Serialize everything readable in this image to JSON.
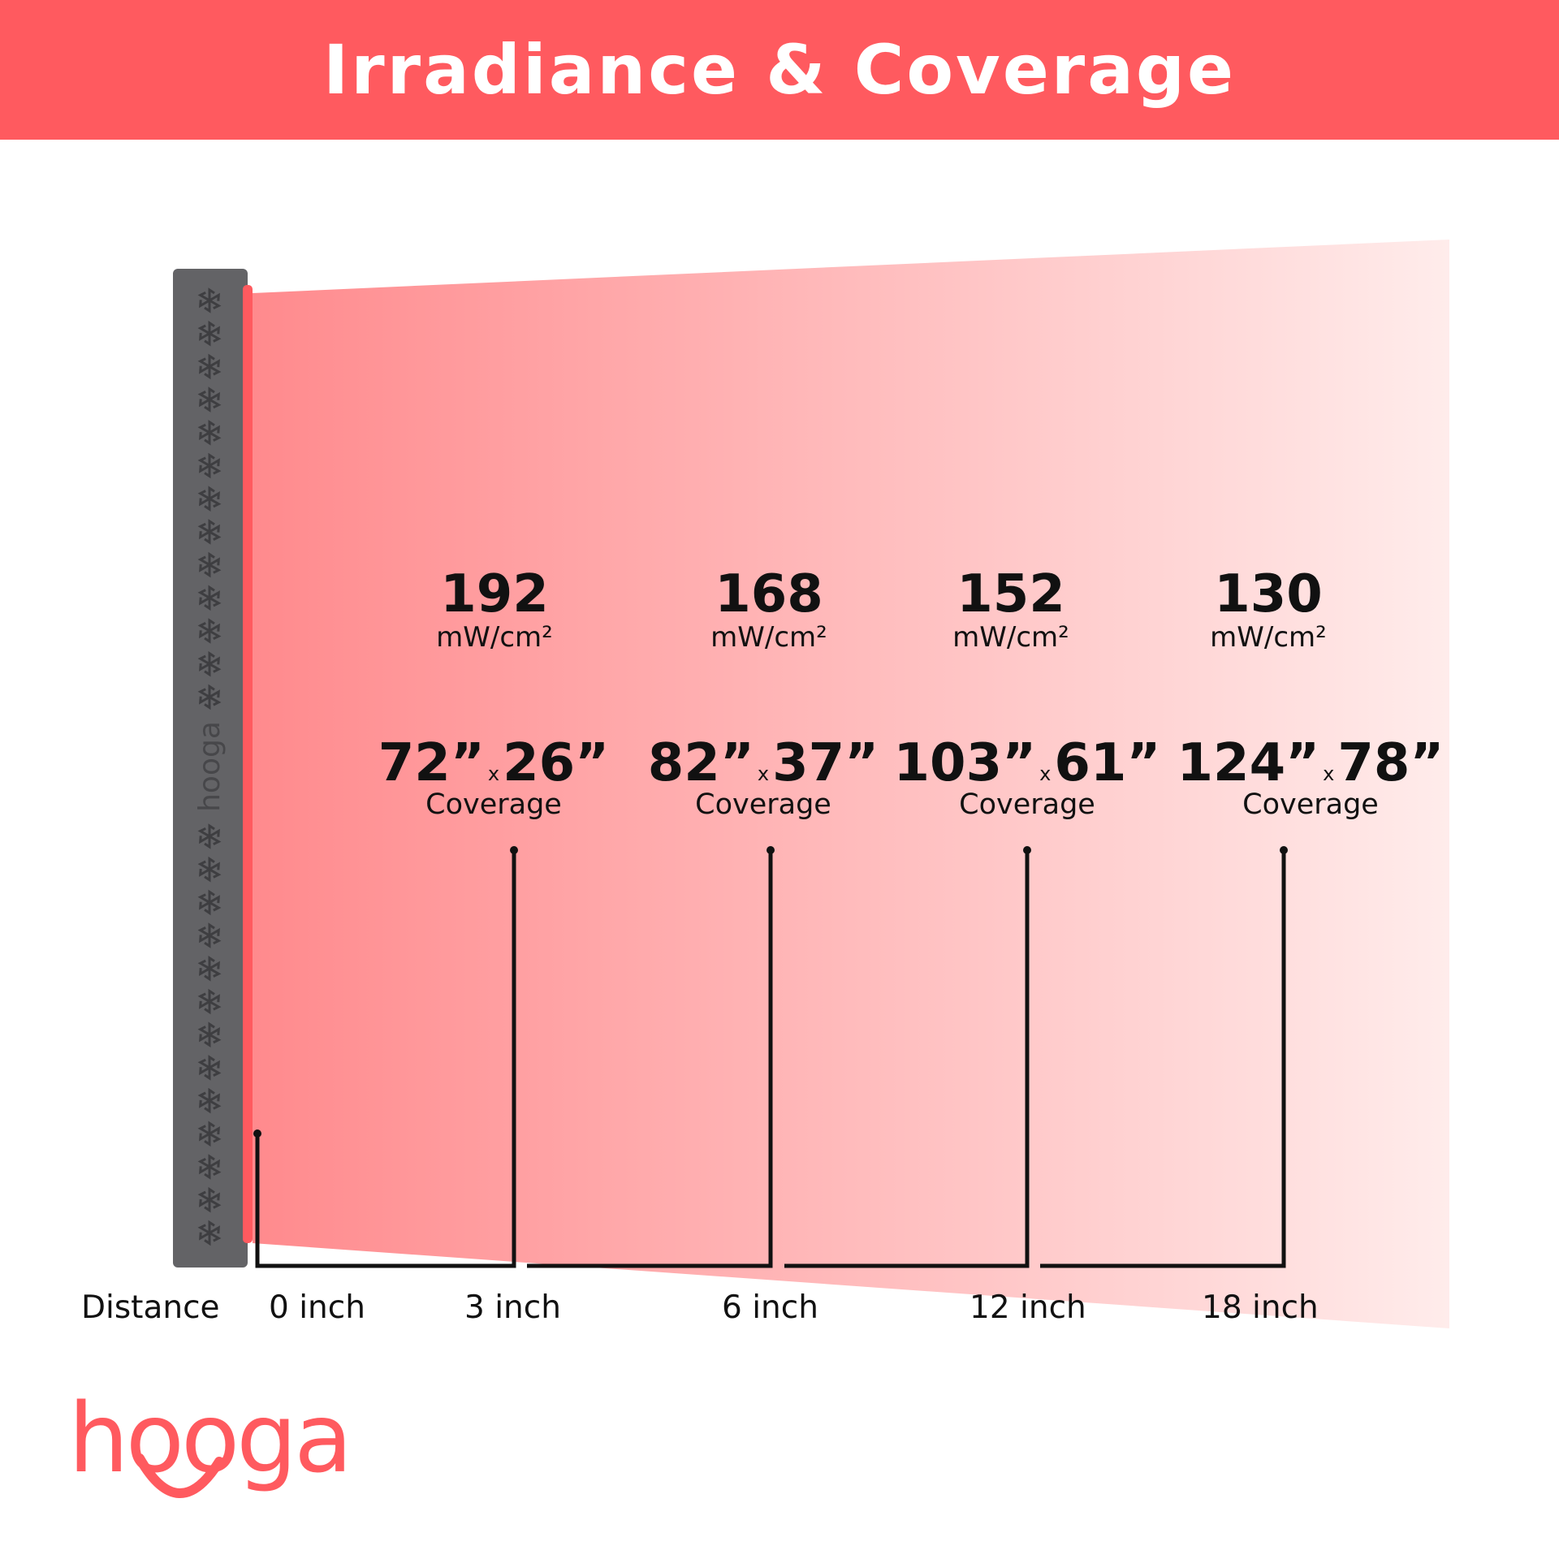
{
  "header": {
    "title": "Irradiance & Coverage"
  },
  "device": {
    "brand": "hooga",
    "color": "#636366",
    "light_color": "#ff5a5f"
  },
  "points": [
    {
      "irradiance": "192",
      "unit": "mW/cm²",
      "width": "72”",
      "height": "26”",
      "times": "x",
      "coverage_label": "Coverage"
    },
    {
      "irradiance": "168",
      "unit": "mW/cm²",
      "width": "82”",
      "height": "37”",
      "times": "x",
      "coverage_label": "Coverage"
    },
    {
      "irradiance": "152",
      "unit": "mW/cm²",
      "width": "103”",
      "height": "61”",
      "times": "x",
      "coverage_label": "Coverage"
    },
    {
      "irradiance": "130",
      "unit": "mW/cm²",
      "width": "124”",
      "height": "78”",
      "times": "x",
      "coverage_label": "Coverage"
    }
  ],
  "distance": {
    "label": "Distance",
    "ticks": [
      "0 inch",
      "3 inch",
      "6 inch",
      "12 inch",
      "18 inch"
    ]
  },
  "logo": {
    "text": "hooga",
    "color": "#ff5a5f",
    "accent": "#f8a08a"
  },
  "colors": {
    "header": "#ff5a5f",
    "beam_start": "#ff8a8d",
    "beam_end": "#ffeceb"
  }
}
